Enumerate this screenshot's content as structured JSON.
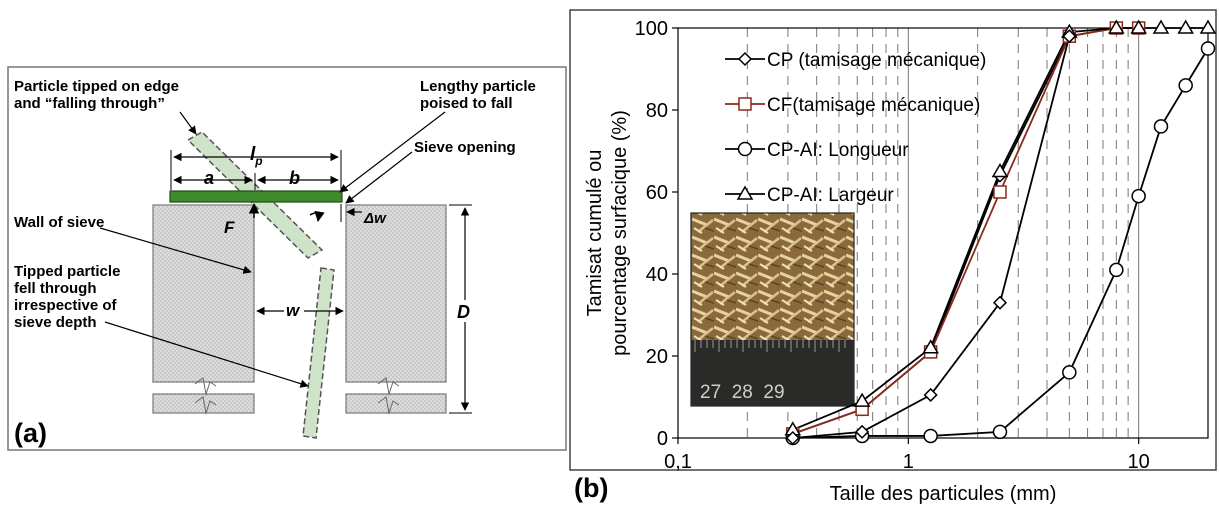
{
  "panel_a": {
    "panel_label": "(a)",
    "labels": {
      "tipped_edge_line1": "Particle tipped on edge",
      "tipped_edge_line2": "and “falling through”",
      "lengthy_line1": "Lengthy particle",
      "lengthy_line2": "poised to fall",
      "sieve_opening": "Sieve opening",
      "wall_of_sieve": "Wall of sieve",
      "tipped_fell_line1": "Tipped particle",
      "tipped_fell_line2": "fell through",
      "tipped_fell_line3": "irrespective of",
      "tipped_fell_line4": "sieve depth",
      "lp": "l",
      "lp_sub": "p",
      "a": "a",
      "b": "b",
      "F": "F",
      "dw": "Δw",
      "w": "w",
      "D": "D"
    },
    "colors": {
      "particle_fill": "#cfe3c8",
      "bar_green": "#3f8a2c",
      "wall_fill": "#d8d8d8"
    }
  },
  "panel_b": {
    "panel_label": "(b)",
    "inset_ruler_text": "27  28  29"
  },
  "chart_data": {
    "type": "line",
    "xscale": "log",
    "xlim": [
      0.1,
      20
    ],
    "ylim": [
      0,
      100
    ],
    "xlabel": "Taille des particules (mm)",
    "ylabel_line1": "Tamisat cumulé ou",
    "ylabel_line2": "pourcentage surfacique (%)",
    "xticks": [
      0.1,
      1,
      10
    ],
    "xtick_labels": [
      "0,1",
      "1",
      "10"
    ],
    "yticks": [
      0,
      20,
      40,
      60,
      80,
      100
    ],
    "ytick_labels": [
      "0",
      "20",
      "40",
      "60",
      "80",
      "100"
    ],
    "legend_position": "top-left",
    "series": [
      {
        "name": "CP (tamisage mécanique)",
        "marker": "diamond",
        "color": "#000000",
        "x": [
          0.315,
          0.63,
          1.25,
          2.5,
          5,
          8,
          10
        ],
        "y": [
          1,
          7,
          21,
          64,
          98,
          100,
          100
        ]
      },
      {
        "name": "CF(tamisage mécanique)",
        "marker": "square",
        "color": "#8b2a1c",
        "x": [
          0.315,
          0.63,
          1.25,
          2.5,
          5,
          8,
          10
        ],
        "y": [
          1,
          7,
          21,
          60,
          98,
          100,
          100
        ]
      },
      {
        "name": "CP-AI: Longueur",
        "marker": "circle",
        "color": "#000000",
        "x": [
          0.315,
          0.63,
          1.25,
          2.5,
          5,
          8,
          10,
          12.5,
          16,
          20
        ],
        "y": [
          0,
          0.5,
          0.5,
          1.5,
          16,
          41,
          59,
          76,
          86,
          95
        ]
      },
      {
        "name": "CP-AI: Largeur",
        "marker": "triangle",
        "color": "#000000",
        "x": [
          0.315,
          0.63,
          1.25,
          2.5,
          5,
          8,
          10,
          12.5,
          16,
          20
        ],
        "y": [
          2,
          9,
          22,
          65,
          99,
          100,
          100,
          100,
          100,
          100
        ]
      },
      {
        "name": "",
        "marker": "diamond",
        "color": "#000000",
        "x": [
          0.315,
          0.63,
          1.25,
          2.5,
          5
        ],
        "y": [
          0,
          1.5,
          10.5,
          33,
          98
        ]
      }
    ]
  }
}
